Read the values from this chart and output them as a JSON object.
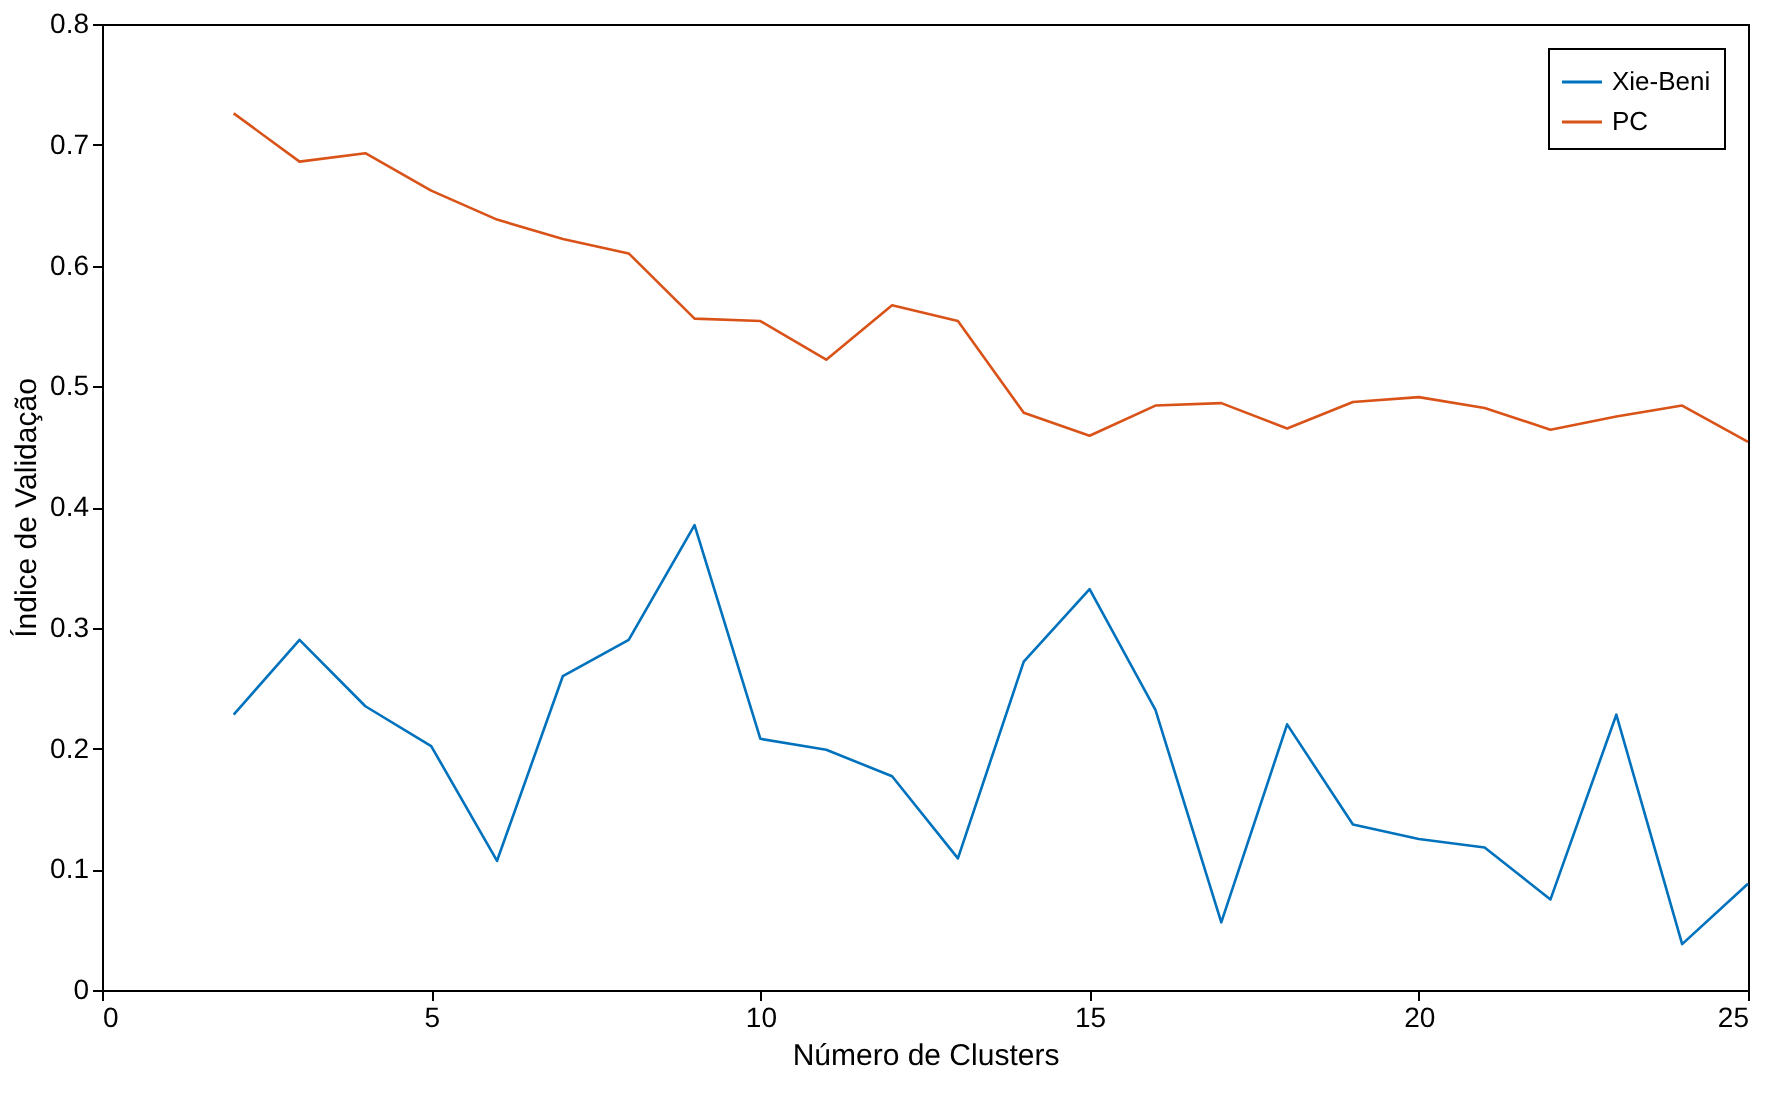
{
  "chart_data": {
    "type": "line",
    "xlabel": "Número de Clusters",
    "ylabel": "Índice de Validação",
    "x": [
      2,
      3,
      4,
      5,
      6,
      7,
      8,
      9,
      10,
      11,
      12,
      13,
      14,
      15,
      16,
      17,
      18,
      19,
      20,
      21,
      22,
      23,
      24,
      25
    ],
    "series": [
      {
        "name": "Xie-Beni",
        "color": "#0072bd",
        "values": [
          0.228,
          0.29,
          0.235,
          0.202,
          0.107,
          0.26,
          0.29,
          0.385,
          0.208,
          0.199,
          0.177,
          0.109,
          0.272,
          0.332,
          0.232,
          0.056,
          0.22,
          0.137,
          0.125,
          0.118,
          0.075,
          0.228,
          0.038,
          0.088
        ]
      },
      {
        "name": "PC",
        "color": "#d95319",
        "values": [
          0.726,
          0.686,
          0.693,
          0.662,
          0.638,
          0.622,
          0.61,
          0.556,
          0.554,
          0.522,
          0.567,
          0.554,
          0.478,
          0.459,
          0.484,
          0.486,
          0.465,
          0.487,
          0.491,
          0.482,
          0.464,
          0.475,
          0.484,
          0.454
        ]
      }
    ],
    "xlim": [
      0,
      25
    ],
    "xticks": [
      0,
      5,
      10,
      15,
      20,
      25
    ],
    "ylim": [
      0,
      0.8
    ],
    "yticks": [
      {
        "value": 0,
        "label": "0"
      },
      0.1,
      0.2,
      0.3,
      0.4,
      0.5,
      0.6,
      0.7,
      0.8
    ],
    "grid": false,
    "legend": "top right",
    "marker": "none",
    "line_style": "solid"
  }
}
